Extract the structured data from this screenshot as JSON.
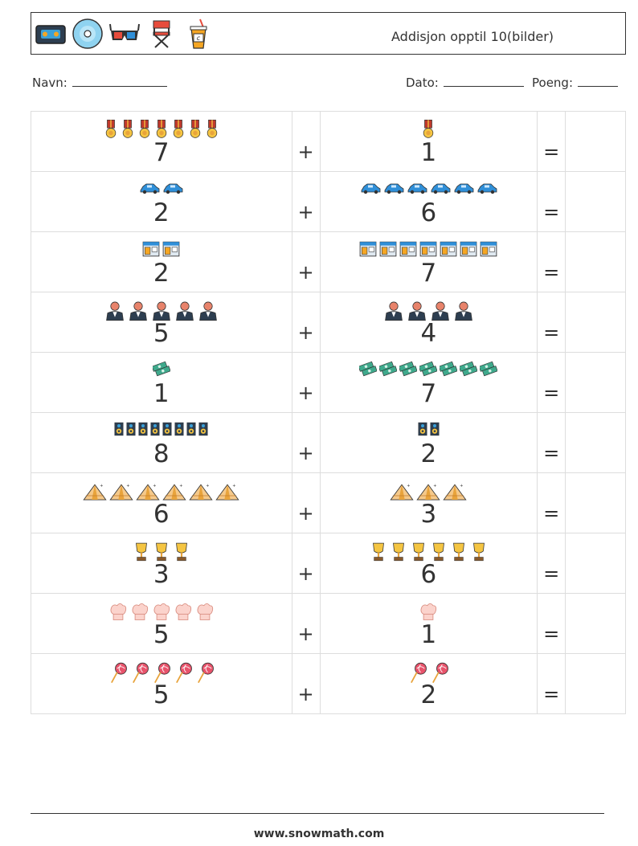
{
  "header": {
    "title": "Addisjon opptil 10(bilder)",
    "icons": [
      "videotape-icon",
      "cd-disc-icon",
      "3d-glasses-icon",
      "directors-chair-icon",
      "soda-cup-icon"
    ]
  },
  "meta": {
    "name_label": "Navn:",
    "date_label": "Dato:",
    "score_label": "Poeng:"
  },
  "operators": {
    "plus": "+",
    "equals": "="
  },
  "problems": [
    {
      "left": 7,
      "right": 1,
      "icon": "medal"
    },
    {
      "left": 2,
      "right": 6,
      "icon": "car"
    },
    {
      "left": 2,
      "right": 7,
      "icon": "shop"
    },
    {
      "left": 5,
      "right": 4,
      "icon": "waiter"
    },
    {
      "left": 1,
      "right": 7,
      "icon": "money"
    },
    {
      "left": 8,
      "right": 2,
      "icon": "speaker"
    },
    {
      "left": 6,
      "right": 3,
      "icon": "tent"
    },
    {
      "left": 3,
      "right": 6,
      "icon": "trophy"
    },
    {
      "left": 5,
      "right": 1,
      "icon": "chef-hat"
    },
    {
      "left": 5,
      "right": 2,
      "icon": "lollipop"
    }
  ],
  "footer": {
    "url": "www.snowmath.com"
  }
}
